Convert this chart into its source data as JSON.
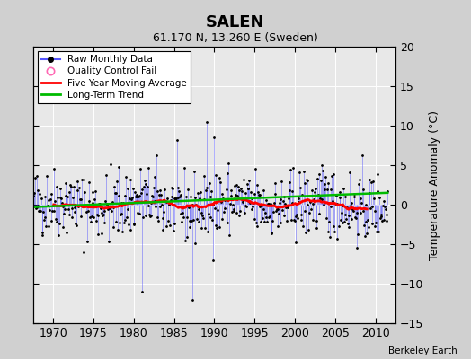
{
  "title": "SALEN",
  "subtitle": "61.170 N, 13.260 E (Sweden)",
  "ylabel": "Temperature Anomaly (°C)",
  "credit": "Berkeley Earth",
  "xlim": [
    1967.5,
    2012.5
  ],
  "ylim": [
    -15,
    20
  ],
  "yticks": [
    -15,
    -10,
    -5,
    0,
    5,
    10,
    15,
    20
  ],
  "xticks": [
    1970,
    1975,
    1980,
    1985,
    1990,
    1995,
    2000,
    2005,
    2010
  ],
  "fig_bg_color": "#d0d0d0",
  "plot_bg_color": "#e8e8e8",
  "raw_color": "#5555ff",
  "moving_avg_color": "#ff0000",
  "trend_color": "#00bb00",
  "qc_color": "#ff69b4",
  "seed": 42,
  "n_months": 516,
  "start_year": 1967.5
}
